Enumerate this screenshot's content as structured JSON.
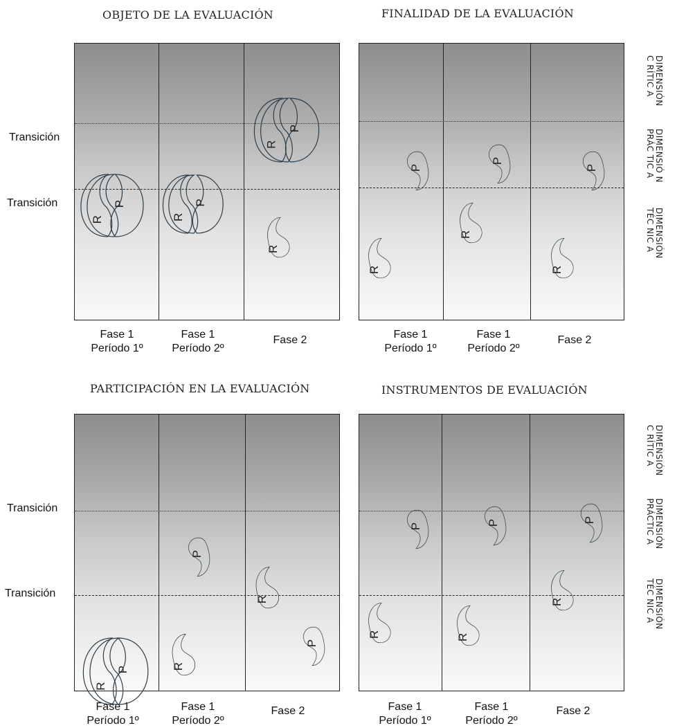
{
  "panels": [
    {
      "title": "OBJETO DE LA EVALUACIÓN",
      "columns": [
        {
          "line1": "Fase 1",
          "line2": "Período 1º"
        },
        {
          "line1": "Fase 1",
          "line2": "Período 2º"
        },
        {
          "line1": "Fase 2",
          "line2": ""
        }
      ]
    },
    {
      "title": "FINALIDAD DE LA EVALUACIÓN",
      "columns": [
        {
          "line1": "Fase 1",
          "line2": "Período 1º"
        },
        {
          "line1": "Fase 1",
          "line2": "Período 2º"
        },
        {
          "line1": "Fase 2",
          "line2": ""
        }
      ]
    },
    {
      "title": "PARTICIPACIÓN EN LA EVALUACIÓN",
      "columns": [
        {
          "line1": "Fase 1",
          "line2": "Período 1º"
        },
        {
          "line1": "Fase 1",
          "line2": "Período 2º"
        },
        {
          "line1": "Fase 2",
          "line2": ""
        }
      ]
    },
    {
      "title": "INSTRUMENTOS DE EVALUACIÓN",
      "columns": [
        {
          "line1": "Fase 1",
          "line2": "Período 1º"
        },
        {
          "line1": "Fase 1",
          "line2": "Período 2º"
        },
        {
          "line1": "Fase 2",
          "line2": ""
        }
      ]
    }
  ],
  "transition_label": "Transición",
  "dimensions": {
    "critica": "DIMENSIÓN\nC RÍTIC A",
    "practica_top": "DIMENSIÓ N\nPRÁC TIC A",
    "tecnica_top": "DIMENSIÓN\nTÉC NIC A",
    "critica_bottom": "DIMENSIÓN\nC RÍTIC A",
    "practica_bottom": "DIMENSIÓN\nPRÁCTIC A",
    "tecnica_bottom": "DIMENSIÓN\nTÉC NIC A"
  },
  "letters": {
    "r": "R",
    "p": "P"
  }
}
